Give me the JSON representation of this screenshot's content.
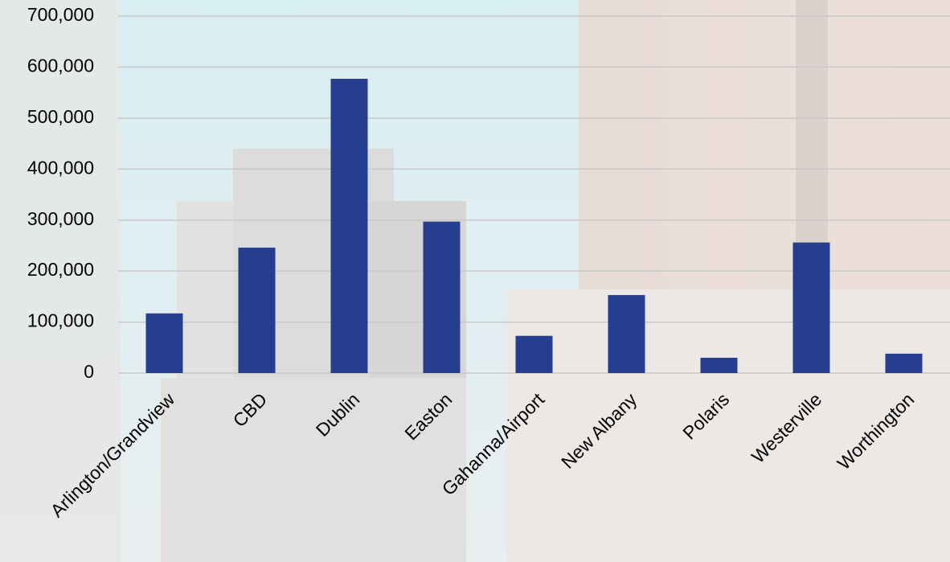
{
  "chart_data": {
    "type": "bar",
    "categories": [
      "Arlington/Grandview",
      "CBD",
      "Dublin",
      "Easton",
      "Gahanna/Airport",
      "New Albany",
      "Polaris",
      "Westerville",
      "Worthington"
    ],
    "values": [
      117000,
      246000,
      577000,
      297000,
      73000,
      153000,
      30000,
      256000,
      38000
    ],
    "color": "#253e8f",
    "ylim": [
      0,
      700000
    ],
    "yticks": [
      0,
      {
        "value": 100000,
        "label": "100,000"
      },
      {
        "value": 200000,
        "label": "200,000"
      },
      {
        "value": 300000,
        "label": "300,000"
      },
      {
        "value": 400000,
        "label": "400,000"
      },
      {
        "value": 500000,
        "label": "500,000"
      },
      {
        "value": 600000,
        "label": "600,000"
      },
      {
        "value": 700000,
        "label": "700,000"
      }
    ],
    "grid": true
  }
}
